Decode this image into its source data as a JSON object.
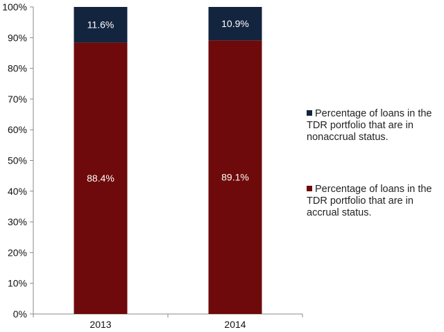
{
  "chart_data": {
    "type": "bar",
    "stacked": true,
    "categories": [
      "2013",
      "2014"
    ],
    "series": [
      {
        "name": "Percentage of loans in the TDR portfolio that are in accrual status.",
        "values": [
          88.4,
          89.1
        ],
        "labels": [
          "88.4%",
          "89.1%"
        ],
        "color": "#6e0a0b"
      },
      {
        "name": "Percentage of loans in the TDR portfolio that are in nonaccrual status.",
        "values": [
          11.6,
          10.9
        ],
        "labels": [
          "11.6%",
          "10.9%"
        ],
        "color": "#13243f"
      }
    ],
    "ylim": [
      0,
      100
    ],
    "yticks": [
      "0%",
      "10%",
      "20%",
      "30%",
      "40%",
      "50%",
      "60%",
      "70%",
      "80%",
      "90%",
      "100%"
    ],
    "title": "",
    "xlabel": "",
    "ylabel": "",
    "grid": false,
    "legend": {
      "position": "right",
      "items": [
        {
          "label": "Percentage of loans in the TDR portfolio that are in nonaccrual status.",
          "color": "#13243f"
        },
        {
          "label": "Percentage of loans in the TDR portfolio that are in accrual status.",
          "color": "#6e0a0b"
        }
      ]
    }
  }
}
